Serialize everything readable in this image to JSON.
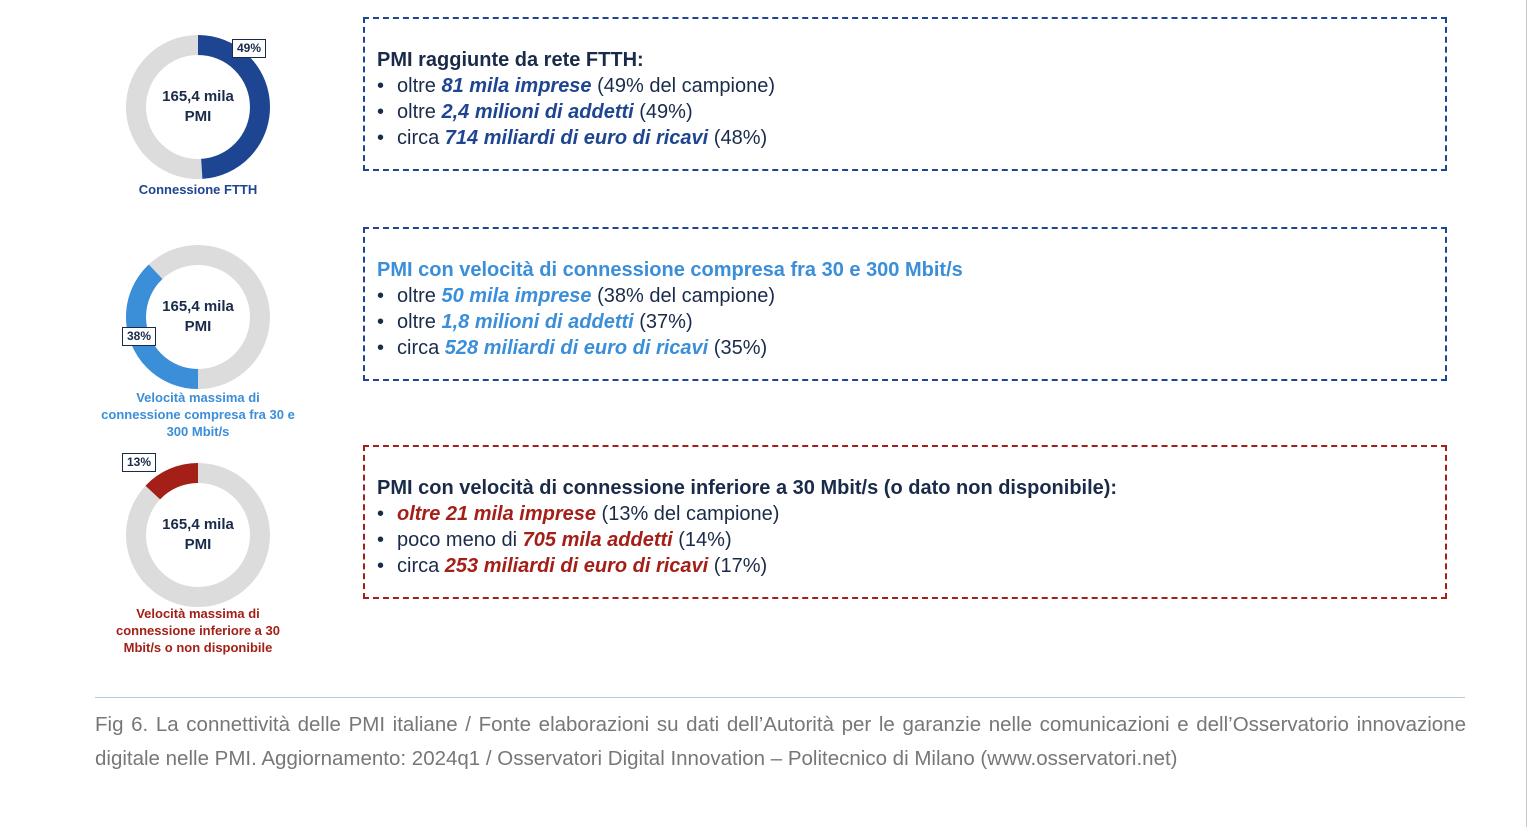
{
  "colors": {
    "ftth": "#1e4591",
    "mid": "#3b8ed8",
    "low": "#a31f17",
    "track": "#dcdcdc",
    "navy": "#1a2b4a"
  },
  "chart_data": {
    "type": "pie",
    "charts": [
      {
        "center_line1": "165,4 mila",
        "center_line2": "PMI",
        "value": 49,
        "label": "49%",
        "caption": "Connessione FTTH"
      },
      {
        "center_line1": "165,4 mila",
        "center_line2": "PMI",
        "value": 38,
        "label": "38%",
        "caption": "Velocità massima di connessione compresa fra 30 e 300 Mbit/s"
      },
      {
        "center_line1": "165,4 mila",
        "center_line2": "PMI",
        "value": 13,
        "label": "13%",
        "caption": "Velocità massima di connessione inferiore a 30 Mbit/s o non disponibile"
      }
    ]
  },
  "boxes": [
    {
      "title": "PMI raggiunte da rete FTTH:",
      "items": [
        {
          "pre": "oltre ",
          "hl": "81 mila imprese",
          "post": " (49% del campione)"
        },
        {
          "pre": "oltre ",
          "hl": "2,4 milioni di addetti",
          "post": " (49%)"
        },
        {
          "pre": "circa ",
          "hl": "714 miliardi di euro di ricavi",
          "post": " (48%)"
        }
      ]
    },
    {
      "title": "PMI con velocità di connessione compresa fra 30 e 300 Mbit/s",
      "items": [
        {
          "pre": "oltre ",
          "hl": "50 mila imprese",
          "post": " (38% del campione)"
        },
        {
          "pre": "oltre ",
          "hl": "1,8 milioni di addetti",
          "post": " (37%)"
        },
        {
          "pre": "circa ",
          "hl": "528 miliardi di euro di ricavi",
          "post": " (35%)"
        }
      ]
    },
    {
      "title": "PMI con velocità di connessione inferiore a 30 Mbit/s (o dato non disponibile):",
      "items": [
        {
          "pre": "",
          "hl": "oltre 21 mila imprese",
          "post": " (13% del campione)"
        },
        {
          "pre": "poco meno di ",
          "hl": "705 mila addetti",
          "post": " (14%)"
        },
        {
          "pre": "circa ",
          "hl": "253 miliardi di euro di ricavi",
          "post": " (17%)"
        }
      ]
    }
  ],
  "bullet": "•",
  "source_text": "Fig 6. La connettività delle PMI italiane / Fonte elaborazioni su dati dell’Autorità per le garanzie nelle comunicazioni e dell’Osservatorio innovazione digitale nelle PMI. Aggiornamento: 2024q1 / Osservatori Digital Innovation – Politecnico di Milano (www.osservatori.net)"
}
